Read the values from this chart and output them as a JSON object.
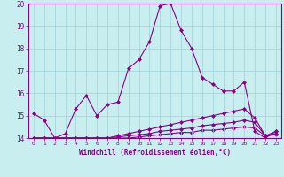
{
  "xlabel": "Windchill (Refroidissement éolien,°C)",
  "line1": [
    15.1,
    14.8,
    14.0,
    14.2,
    15.3,
    15.9,
    15.0,
    15.5,
    15.6,
    17.1,
    17.5,
    18.3,
    19.9,
    20.0,
    18.8,
    18.0,
    16.7,
    16.4,
    16.1,
    16.1,
    16.5,
    14.3,
    14.0,
    14.3
  ],
  "line2": [
    14.0,
    14.0,
    14.0,
    14.0,
    14.0,
    14.0,
    14.0,
    14.0,
    14.1,
    14.2,
    14.3,
    14.4,
    14.5,
    14.6,
    14.7,
    14.8,
    14.9,
    15.0,
    15.1,
    15.2,
    15.3,
    14.9,
    14.1,
    14.3
  ],
  "line3": [
    14.0,
    14.0,
    14.0,
    14.0,
    14.0,
    14.0,
    14.0,
    14.0,
    14.05,
    14.1,
    14.15,
    14.2,
    14.3,
    14.35,
    14.4,
    14.45,
    14.55,
    14.6,
    14.65,
    14.7,
    14.8,
    14.7,
    14.1,
    14.2
  ],
  "line4": [
    14.0,
    14.0,
    14.0,
    14.0,
    14.0,
    14.0,
    14.0,
    14.0,
    14.0,
    14.0,
    14.05,
    14.1,
    14.15,
    14.2,
    14.25,
    14.25,
    14.35,
    14.35,
    14.4,
    14.45,
    14.5,
    14.45,
    14.1,
    14.15
  ],
  "line_color": "#880088",
  "bg_color": "#c8eef0",
  "grid_color": "#a0d4d8",
  "ylim": [
    14,
    20
  ],
  "xlim": [
    -0.5,
    23.5
  ],
  "yticks": [
    14,
    15,
    16,
    17,
    18,
    19,
    20
  ],
  "xticks": [
    0,
    1,
    2,
    3,
    4,
    5,
    6,
    7,
    8,
    9,
    10,
    11,
    12,
    13,
    14,
    15,
    16,
    17,
    18,
    19,
    20,
    21,
    22,
    23
  ],
  "marker": "D",
  "marker_size": 2.0,
  "line_width": 0.8,
  "xlabel_fontsize": 5.5,
  "xtick_fontsize": 4.5,
  "ytick_fontsize": 5.5
}
